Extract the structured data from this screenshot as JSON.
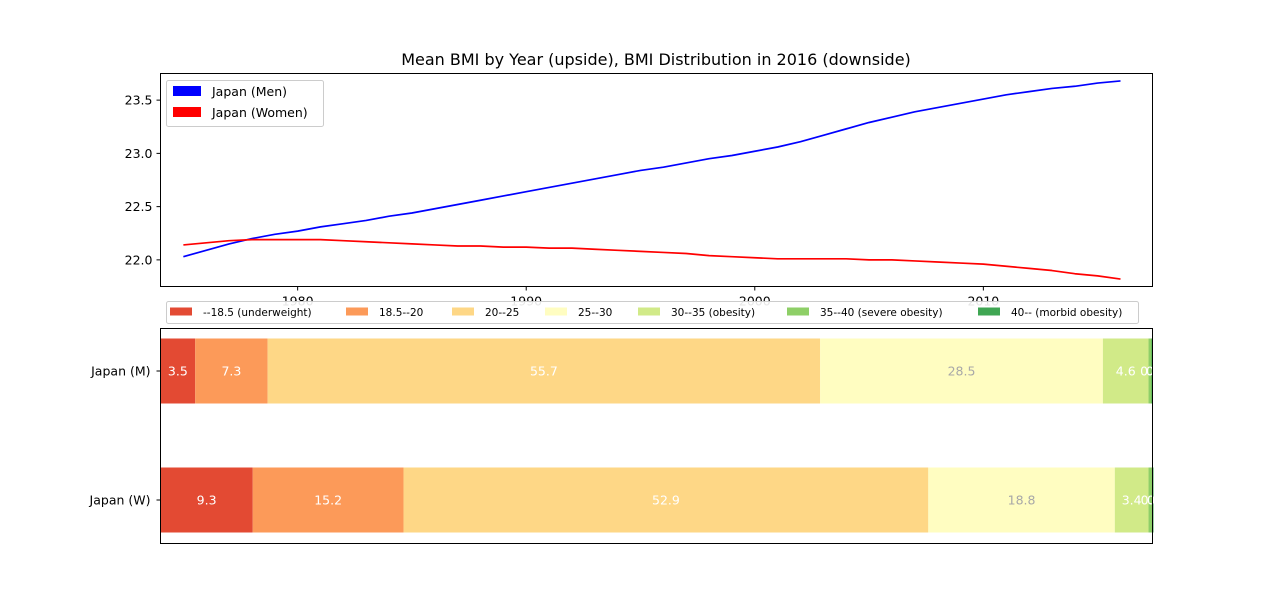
{
  "title": "Mean BMI by Year (upside), BMI Distribution in 2016 (downside)",
  "chart_data": [
    {
      "type": "line",
      "xlim": [
        1974,
        2017.4
      ],
      "ylim": [
        21.75,
        23.75
      ],
      "x_ticks": [
        "1980",
        "1990",
        "2000",
        "2010"
      ],
      "y_ticks": [
        "22.0",
        "22.5",
        "23.0",
        "23.5"
      ],
      "legend_position": "upper-left",
      "grid": false,
      "series": [
        {
          "name": "Japan (Men)",
          "color": "#0000ff",
          "x": [
            1975,
            1976,
            1977,
            1978,
            1979,
            1980,
            1981,
            1982,
            1983,
            1984,
            1985,
            1986,
            1987,
            1988,
            1989,
            1990,
            1991,
            1992,
            1993,
            1994,
            1995,
            1996,
            1997,
            1998,
            1999,
            2000,
            2001,
            2002,
            2003,
            2004,
            2005,
            2006,
            2007,
            2008,
            2009,
            2010,
            2011,
            2012,
            2013,
            2014,
            2015,
            2016
          ],
          "y": [
            22.03,
            22.09,
            22.15,
            22.2,
            22.24,
            22.27,
            22.31,
            22.34,
            22.37,
            22.41,
            22.44,
            22.48,
            22.52,
            22.56,
            22.6,
            22.64,
            22.68,
            22.72,
            22.76,
            22.8,
            22.84,
            22.87,
            22.91,
            22.95,
            22.98,
            23.02,
            23.06,
            23.11,
            23.17,
            23.23,
            23.29,
            23.34,
            23.39,
            23.43,
            23.47,
            23.51,
            23.55,
            23.58,
            23.61,
            23.63,
            23.66,
            23.68
          ]
        },
        {
          "name": "Japan (Women)",
          "color": "#ff0000",
          "x": [
            1975,
            1976,
            1977,
            1978,
            1979,
            1980,
            1981,
            1982,
            1983,
            1984,
            1985,
            1986,
            1987,
            1988,
            1989,
            1990,
            1991,
            1992,
            1993,
            1994,
            1995,
            1996,
            1997,
            1998,
            1999,
            2000,
            2001,
            2002,
            2003,
            2004,
            2005,
            2006,
            2007,
            2008,
            2009,
            2010,
            2011,
            2012,
            2013,
            2014,
            2015,
            2016
          ],
          "y": [
            22.14,
            22.16,
            22.18,
            22.19,
            22.19,
            22.19,
            22.19,
            22.18,
            22.17,
            22.16,
            22.15,
            22.14,
            22.13,
            22.13,
            22.12,
            22.12,
            22.11,
            22.11,
            22.1,
            22.09,
            22.08,
            22.07,
            22.06,
            22.04,
            22.03,
            22.02,
            22.01,
            22.01,
            22.01,
            22.01,
            22.0,
            22.0,
            21.99,
            21.98,
            21.97,
            21.96,
            21.94,
            21.92,
            21.9,
            21.87,
            21.85,
            21.82
          ]
        }
      ]
    },
    {
      "type": "bar",
      "orientation": "horizontal",
      "stacked": true,
      "xlim": [
        0,
        100
      ],
      "categories": [
        "Japan (M)",
        "Japan (W)"
      ],
      "legend_position": "top",
      "series": [
        {
          "name": "--18.5 (underweight)",
          "color": "#e34a33",
          "label_color": "#ffffff",
          "values": [
            3.5,
            9.3
          ],
          "labels": [
            "3.5",
            "9.3"
          ]
        },
        {
          "name": "18.5--20",
          "color": "#fc9a59",
          "label_color": "#ffffff",
          "values": [
            7.3,
            15.2
          ],
          "labels": [
            "7.3",
            "15.2"
          ]
        },
        {
          "name": "20--25",
          "color": "#fed786",
          "label_color": "#ffffff",
          "values": [
            55.7,
            52.9
          ],
          "labels": [
            "55.7",
            "52.9"
          ]
        },
        {
          "name": "25--30",
          "color": "#fffdc1",
          "label_color": "#a8a8a8",
          "values": [
            28.5,
            18.8
          ],
          "labels": [
            "28.5",
            "18.8"
          ]
        },
        {
          "name": "30--35 (obesity)",
          "color": "#d1ea88",
          "label_color": "#ffffff",
          "values": [
            4.6,
            3.4
          ],
          "labels": [
            "4.6",
            "3.4"
          ]
        },
        {
          "name": "35--40 (severe obesity)",
          "color": "#8ecf67",
          "label_color": "#ffffff",
          "values": [
            0.3,
            0.4
          ],
          "labels": [
            "0.3",
            "0.4"
          ]
        },
        {
          "name": "40-- (morbid obesity)",
          "color": "#3fa653",
          "label_color": "#ffffff",
          "values": [
            0.1,
            0.1
          ],
          "labels": [
            "0.",
            "0."
          ]
        }
      ]
    }
  ]
}
